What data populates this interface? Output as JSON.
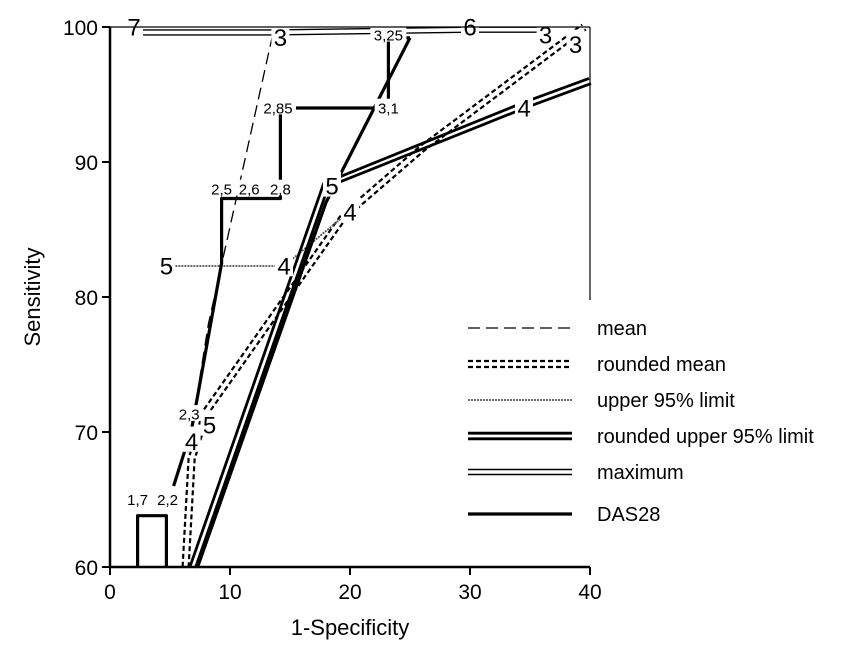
{
  "chart_data": {
    "type": "line",
    "title": "",
    "xlabel": "1-Specificity",
    "ylabel": "Sensitivity",
    "xlim": [
      0,
      40
    ],
    "ylim": [
      60,
      100
    ],
    "xticks": [
      "0",
      "10",
      "20",
      "30",
      "40"
    ],
    "yticks": [
      "60",
      "70",
      "80",
      "90",
      "100"
    ],
    "grid": false,
    "legend_position": "bottom-right",
    "series": [
      {
        "name": "mean",
        "style": "dash-thin",
        "color": "#000000",
        "points": [
          {
            "x": 6.5,
            "y": 68.5,
            "label": "2,3"
          },
          {
            "x": 8.2,
            "y": 78,
            "label": ""
          },
          {
            "x": 13.5,
            "y": 99.2,
            "label": "3"
          }
        ]
      },
      {
        "name": "rounded mean",
        "style": "dotted-double",
        "color": "#000000",
        "points": [
          {
            "x": 6.3,
            "y": 60,
            "label": ""
          },
          {
            "x": 6.8,
            "y": 68,
            "label": "4"
          },
          {
            "x": 8.0,
            "y": 71.5,
            "label": "5"
          },
          {
            "x": 19.5,
            "y": 86,
            "label": "4"
          },
          {
            "x": 26.0,
            "y": 91.0,
            "label": ""
          },
          {
            "x": 39.5,
            "y": 100,
            "label": "3"
          }
        ]
      },
      {
        "name": "upper 95% limit",
        "style": "thin-gray",
        "color": "#000000",
        "points": [
          {
            "x": 4.7,
            "y": 82.3,
            "label": "5"
          },
          {
            "x": 14.5,
            "y": 82.3,
            "label": "4"
          },
          {
            "x": 19.5,
            "y": 86,
            "label": ""
          }
        ]
      },
      {
        "name": "rounded upper 95% limit",
        "style": "thick-double",
        "color": "#000000",
        "points": [
          {
            "x": 6.9,
            "y": 60,
            "label": ""
          },
          {
            "x": 18.0,
            "y": 88.3,
            "label": "5"
          },
          {
            "x": 34.5,
            "y": 94.2,
            "label": "4"
          },
          {
            "x": 40,
            "y": 96.0,
            "label": ""
          }
        ]
      },
      {
        "name": "maximum",
        "style": "double-thin",
        "color": "#000000",
        "points": [
          {
            "x": 2.0,
            "y": 99.6,
            "label": "7"
          },
          {
            "x": 13.5,
            "y": 99.6,
            "label": "3"
          },
          {
            "x": 30.0,
            "y": 99.8,
            "label": "6"
          },
          {
            "x": 37.0,
            "y": 99.8,
            "label": "3"
          }
        ]
      },
      {
        "name": "DAS28",
        "style": "thick",
        "color": "#000000",
        "points": [
          {
            "x": 2.3,
            "y": 60,
            "label": ""
          },
          {
            "x": 2.3,
            "y": 63.8,
            "label": "1,7"
          },
          {
            "x": 4.7,
            "y": 63.8,
            "label": "2,2"
          },
          {
            "x": 4.7,
            "y": 60,
            "label": ""
          },
          {
            "x": 5.3,
            "y": 66,
            "label": ""
          },
          {
            "x": 6.8,
            "y": 70.2,
            "label": "2,3"
          },
          {
            "x": 9.3,
            "y": 82.5,
            "label": ""
          },
          {
            "x": 9.3,
            "y": 87.3,
            "label": "2,5"
          },
          {
            "x": 11.6,
            "y": 87.3,
            "label": "2,6"
          },
          {
            "x": 14.2,
            "y": 87.3,
            "label": "2,8"
          },
          {
            "x": 14.2,
            "y": 94.0,
            "label": "2,85"
          },
          {
            "x": 23.2,
            "y": 94.0,
            "label": "3,1"
          },
          {
            "x": 23.2,
            "y": 99.2,
            "label": "3,25"
          },
          {
            "x": 25.0,
            "y": 99.2,
            "label": ""
          },
          {
            "x": 18.0,
            "y": 87.0,
            "label": ""
          },
          {
            "x": 7.3,
            "y": 60,
            "label": ""
          }
        ]
      }
    ],
    "annotations": [
      {
        "text": "7",
        "x": 2.0,
        "y": 100
      },
      {
        "text": "3",
        "x": 14.2,
        "y": 99.2
      },
      {
        "text": "3,25",
        "x": 23.2,
        "y": 99.4
      },
      {
        "text": "6",
        "x": 30.0,
        "y": 100
      },
      {
        "text": "3",
        "x": 36.3,
        "y": 99.4
      },
      {
        "text": "3",
        "x": 38.8,
        "y": 98.7
      },
      {
        "text": "2,85",
        "x": 14.0,
        "y": 94.0
      },
      {
        "text": "3,1",
        "x": 23.2,
        "y": 94.0
      },
      {
        "text": "4",
        "x": 34.5,
        "y": 94.0
      },
      {
        "text": "2,5",
        "x": 9.3,
        "y": 88.0
      },
      {
        "text": "2,6",
        "x": 11.6,
        "y": 88.0
      },
      {
        "text": "2,8",
        "x": 14.2,
        "y": 88.0
      },
      {
        "text": "5",
        "x": 18.5,
        "y": 88.2
      },
      {
        "text": "4",
        "x": 20.0,
        "y": 86.3
      },
      {
        "text": "5",
        "x": 4.7,
        "y": 82.3
      },
      {
        "text": "4",
        "x": 14.5,
        "y": 82.3
      },
      {
        "text": "2,3",
        "x": 6.6,
        "y": 71.3
      },
      {
        "text": "4",
        "x": 6.8,
        "y": 69.3
      },
      {
        "text": "5",
        "x": 8.3,
        "y": 70.5
      },
      {
        "text": "1,7",
        "x": 2.3,
        "y": 65.0
      },
      {
        "text": "2,2",
        "x": 4.8,
        "y": 65.0
      }
    ]
  }
}
